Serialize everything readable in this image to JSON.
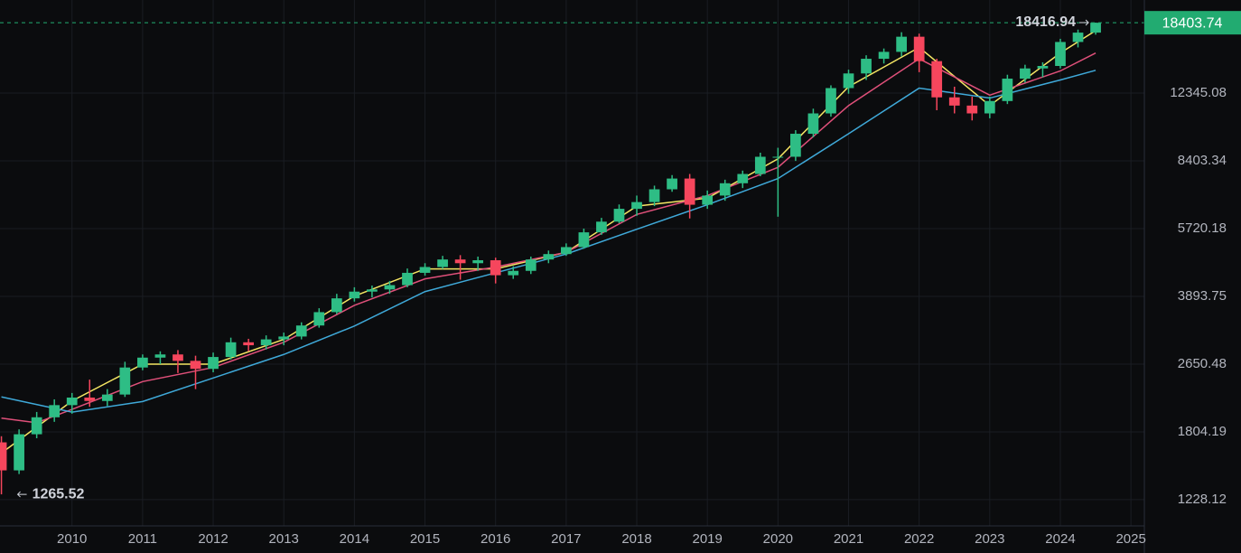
{
  "chart_data": {
    "type": "candlestick",
    "x": [
      2009,
      2009.25,
      2009.5,
      2009.75,
      2010,
      2010.25,
      2010.5,
      2010.75,
      2011,
      2011.25,
      2011.5,
      2011.75,
      2012,
      2012.25,
      2012.5,
      2012.75,
      2013,
      2013.25,
      2013.5,
      2013.75,
      2014,
      2014.25,
      2014.5,
      2014.75,
      2015,
      2015.25,
      2015.5,
      2015.75,
      2016,
      2016.25,
      2016.5,
      2016.75,
      2017,
      2017.25,
      2017.5,
      2017.75,
      2018,
      2018.25,
      2018.5,
      2018.75,
      2019,
      2019.25,
      2019.5,
      2019.75,
      2020,
      2020.25,
      2020.5,
      2020.75,
      2021,
      2021.25,
      2021.5,
      2021.75,
      2022,
      2022.25,
      2022.5,
      2022.75,
      2023,
      2023.25,
      2023.5,
      2023.75,
      2024,
      2024.25,
      2024.5
    ],
    "open": [
      1700,
      1450,
      1780,
      1960,
      2100,
      2192,
      2150,
      2230,
      2600,
      2750,
      2800,
      2700,
      2580,
      2760,
      3000,
      2950,
      3050,
      3100,
      3300,
      3560,
      3850,
      4000,
      4050,
      4150,
      4450,
      4600,
      4800,
      4700,
      4780,
      4390,
      4500,
      4800,
      4950,
      5150,
      5600,
      5950,
      6400,
      6650,
      7150,
      7600,
      6550,
      6900,
      7400,
      7800,
      8600,
      8600,
      9800,
      11000,
      12700,
      13800,
      15000,
      15600,
      17000,
      14800,
      12050,
      11500,
      11000,
      11800,
      13400,
      14200,
      14400,
      16500,
      17400
    ],
    "high": [
      1760,
      1830,
      2020,
      2170,
      2250,
      2427,
      2300,
      2686,
      2800,
      2850,
      2870,
      2780,
      2830,
      3080,
      3060,
      3120,
      3170,
      3360,
      3640,
      3950,
      4100,
      4140,
      4250,
      4560,
      4700,
      4900,
      4920,
      4880,
      4850,
      4620,
      4880,
      5050,
      5260,
      5720,
      6080,
      6560,
      6900,
      7300,
      7750,
      7800,
      7100,
      7550,
      7950,
      8800,
      9050,
      10000,
      11300,
      12900,
      14100,
      15300,
      15900,
      17440,
      17300,
      15000,
      12800,
      12100,
      12100,
      13700,
      14500,
      14700,
      16800,
      17700,
      18416.94
    ],
    "low": [
      1265.52,
      1420,
      1740,
      1910,
      2000,
      2080,
      2090,
      2200,
      2560,
      2650,
      2520,
      2300,
      2530,
      2720,
      2850,
      2880,
      2950,
      3050,
      3260,
      3520,
      3780,
      3870,
      3950,
      4100,
      4380,
      4550,
      4280,
      4500,
      4190,
      4300,
      4420,
      4700,
      4900,
      5100,
      5520,
      5900,
      6150,
      6500,
      7050,
      6060,
      6400,
      6700,
      7200,
      7700,
      6120,
      8400,
      9600,
      10800,
      12300,
      13300,
      14600,
      15200,
      13900,
      11200,
      11000,
      10570,
      10700,
      11600,
      13100,
      13500,
      14200,
      16000,
      17200
    ],
    "close": [
      1450,
      1780,
      1960,
      2100,
      2192,
      2150,
      2230,
      2600,
      2750,
      2800,
      2700,
      2580,
      2760,
      3000,
      2950,
      3050,
      3100,
      3300,
      3560,
      3850,
      4000,
      4050,
      4150,
      4450,
      4600,
      4800,
      4700,
      4780,
      4390,
      4500,
      4800,
      4950,
      5150,
      5600,
      5950,
      6400,
      6650,
      7150,
      7600,
      6550,
      6900,
      7400,
      7800,
      8600,
      8600,
      9800,
      11000,
      12700,
      13800,
      15000,
      15600,
      17000,
      14800,
      12050,
      11500,
      11000,
      11800,
      13400,
      14200,
      14400,
      16500,
      17400,
      18403.74
    ],
    "up_color": "#2ebd85",
    "down_color": "#f6465d",
    "last_price_color": "#22ab71",
    "series": [
      {
        "color": "#f5e663",
        "x": [
          2009,
          2010,
          2011,
          2012,
          2013,
          2014,
          2015,
          2016,
          2017,
          2018,
          2019,
          2020,
          2021,
          2022,
          2023,
          2024,
          2024.5
        ],
        "values": [
          1600,
          2150,
          2650,
          2650,
          3050,
          3900,
          4550,
          4550,
          5000,
          6500,
          6800,
          8500,
          12800,
          16000,
          11500,
          15500,
          17600
        ]
      },
      {
        "color": "#e0507a",
        "x": [
          2009,
          2009.5,
          2010,
          2011,
          2012,
          2013,
          2014,
          2015,
          2016,
          2017,
          2018,
          2019,
          2020,
          2021,
          2022,
          2023,
          2024,
          2024.5
        ],
        "values": [
          1950,
          1900,
          2050,
          2400,
          2600,
          3000,
          3700,
          4300,
          4600,
          5000,
          6200,
          6900,
          8100,
          11500,
          15000,
          12200,
          14000,
          15500
        ]
      },
      {
        "color": "#3fa9d9",
        "x": [
          2009,
          2010,
          2011,
          2012,
          2013,
          2014,
          2015,
          2016,
          2017,
          2018,
          2019,
          2020,
          2021,
          2022,
          2023,
          2024,
          2024.5
        ],
        "values": [
          2200,
          2018,
          2143,
          2450,
          2800,
          3290,
          4000,
          4450,
          4950,
          5700,
          6550,
          7600,
          9800,
          12700,
          12000,
          13300,
          14050
        ]
      }
    ],
    "xlim": [
      2008.98,
      2025.19
    ],
    "xticks": [
      2010,
      2011,
      2012,
      2013,
      2014,
      2015,
      2016,
      2017,
      2018,
      2019,
      2020,
      2021,
      2022,
      2023,
      2024,
      2025
    ],
    "ylim": [
      1058,
      20940
    ],
    "yticks": [
      1228.12,
      1804.19,
      2650.48,
      3893.75,
      5720.18,
      8403.34,
      12345.08
    ],
    "log_scale": true,
    "grid": true
  }
}
